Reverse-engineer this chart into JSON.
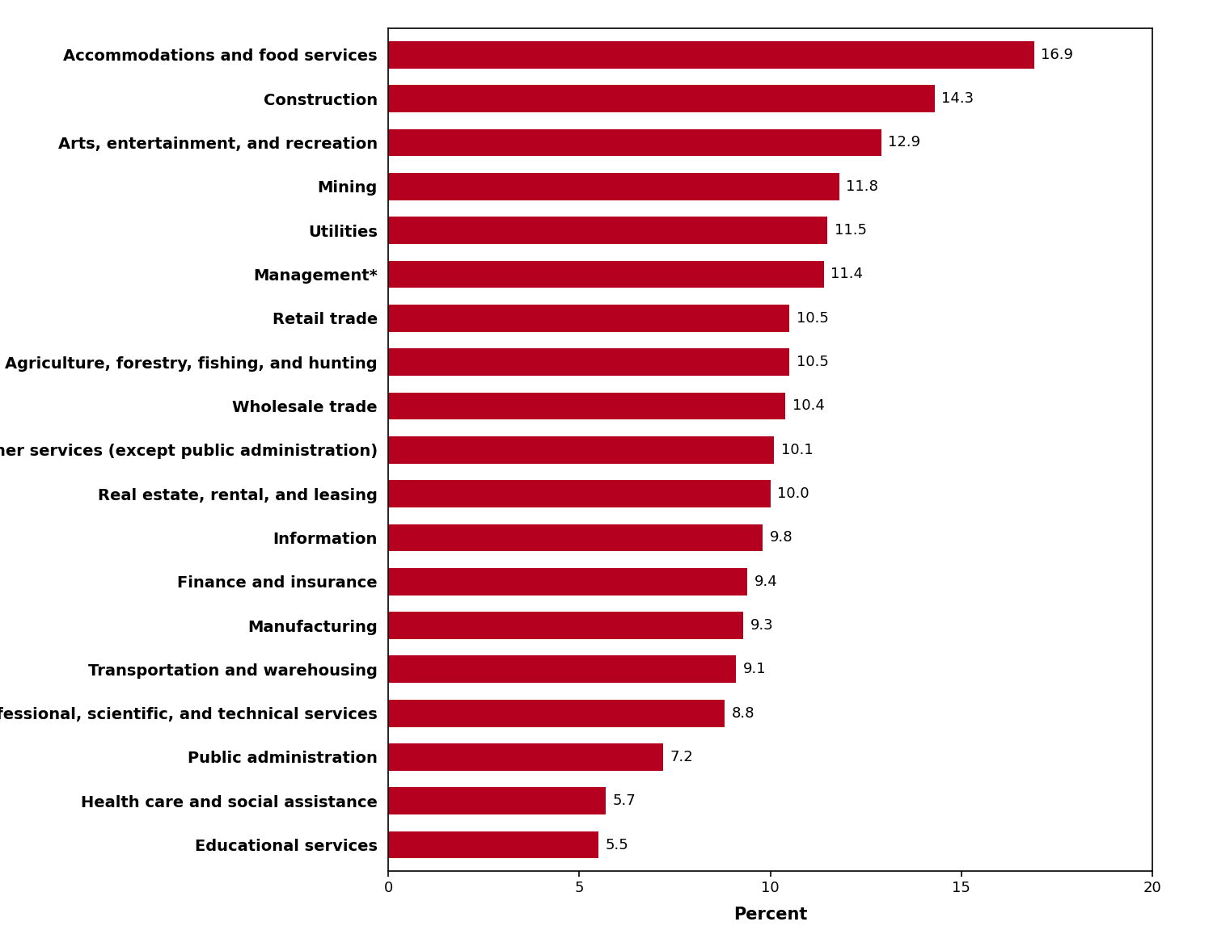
{
  "categories": [
    "Educational services",
    "Health care and social assistance",
    "Public administration",
    "Professional, scientific, and technical services",
    "Transportation and warehousing",
    "Manufacturing",
    "Finance and insurance",
    "Information",
    "Real estate, rental, and leasing",
    "Other services (except public administration)",
    "Wholesale trade",
    "Agriculture, forestry, fishing, and hunting",
    "Retail trade",
    "Management*",
    "Utilities",
    "Mining",
    "Arts, entertainment, and recreation",
    "Construction",
    "Accommodations and food services"
  ],
  "values": [
    5.5,
    5.7,
    7.2,
    8.8,
    9.1,
    9.3,
    9.4,
    9.8,
    10.0,
    10.1,
    10.4,
    10.5,
    10.5,
    11.4,
    11.5,
    11.8,
    12.9,
    14.3,
    16.9
  ],
  "bar_color": "#b5001f",
  "xlabel": "Percent",
  "xlim": [
    0,
    20
  ],
  "xticks": [
    0,
    5,
    10,
    15,
    20
  ],
  "background_color": "#ffffff",
  "label_fontsize": 14,
  "value_fontsize": 13,
  "xlabel_fontsize": 15,
  "tick_fontsize": 13,
  "bar_height": 0.62
}
